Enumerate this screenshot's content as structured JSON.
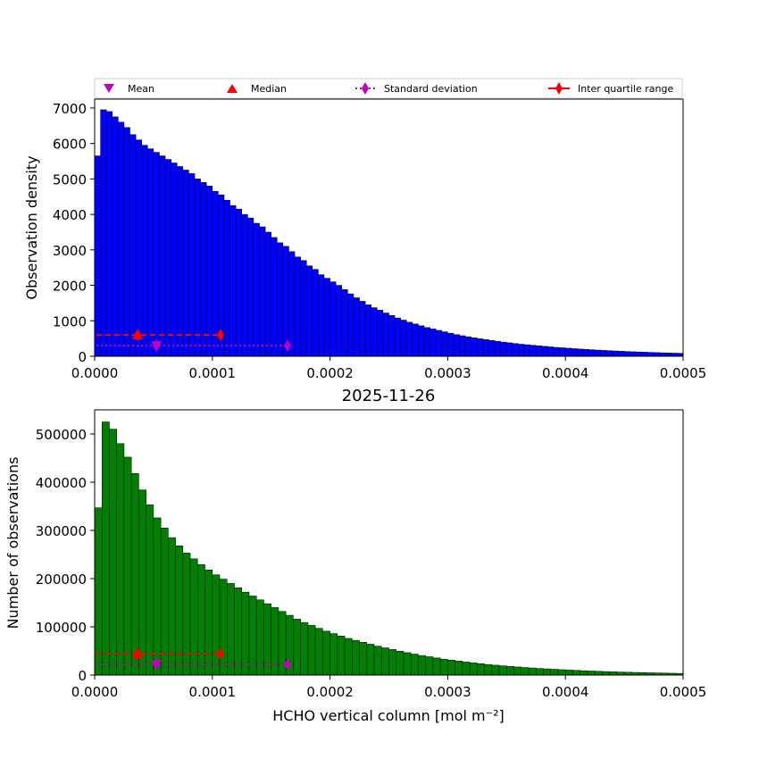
{
  "chart_data": [
    {
      "type": "bar",
      "id": "density",
      "title": "",
      "xlabel": "",
      "ylabel": "Observation density",
      "xlim": [
        0,
        0.0005
      ],
      "ylim": [
        0,
        7250
      ],
      "xticks": [
        "0.0000",
        "0.0001",
        "0.0002",
        "0.0003",
        "0.0004",
        "0.0005"
      ],
      "xtick_values": [
        0,
        0.0001,
        0.0002,
        0.0003,
        0.0004,
        0.0005
      ],
      "yticks": [
        "0",
        "1000",
        "2000",
        "3000",
        "4000",
        "5000",
        "6000",
        "7000"
      ],
      "ytick_values": [
        0,
        1000,
        2000,
        3000,
        4000,
        5000,
        6000,
        7000
      ],
      "bar_color": "#0000ff",
      "bin_start": 0,
      "bin_width": 5e-06,
      "values": [
        5650,
        6950,
        6900,
        6750,
        6600,
        6450,
        6250,
        6100,
        5950,
        5850,
        5750,
        5650,
        5550,
        5450,
        5350,
        5250,
        5150,
        5000,
        4900,
        4800,
        4650,
        4550,
        4400,
        4250,
        4150,
        4000,
        3900,
        3750,
        3650,
        3500,
        3350,
        3200,
        3100,
        2950,
        2800,
        2700,
        2550,
        2450,
        2300,
        2200,
        2100,
        2000,
        1880,
        1760,
        1650,
        1550,
        1450,
        1370,
        1300,
        1220,
        1150,
        1080,
        1020,
        960,
        910,
        860,
        810,
        770,
        730,
        690,
        650,
        610,
        580,
        550,
        520,
        495,
        470,
        445,
        420,
        400,
        380,
        360,
        340,
        325,
        310,
        295,
        280,
        265,
        250,
        240,
        228,
        216,
        205,
        195,
        185,
        175,
        166,
        158,
        150,
        142,
        135,
        128,
        122,
        116,
        110,
        104,
        99,
        94,
        89,
        84
      ],
      "stats": {
        "mean": 5.25e-05,
        "median": 3.65e-05,
        "std_range": [
          5.25e-05,
          0.000164
        ],
        "iqr_range": [
          3.65e-05,
          0.000107
        ],
        "marker_level_stats": 300,
        "marker_level_iqr": 600
      }
    },
    {
      "type": "bar",
      "id": "counts",
      "title": "2025-11-26",
      "xlabel": "HCHO vertical column [mol m⁻²]",
      "ylabel": "Number of observations",
      "xlim": [
        0,
        0.0005
      ],
      "ylim": [
        0,
        550000
      ],
      "xticks": [
        "0.0000",
        "0.0001",
        "0.0002",
        "0.0003",
        "0.0004",
        "0.0005"
      ],
      "xtick_values": [
        0,
        0.0001,
        0.0002,
        0.0003,
        0.0004,
        0.0005
      ],
      "yticks": [
        "0",
        "100000",
        "200000",
        "300000",
        "400000",
        "500000"
      ],
      "ytick_values": [
        0,
        100000,
        200000,
        300000,
        400000,
        500000
      ],
      "bar_color": "#008000",
      "bin_start": 0,
      "bin_width": 6.25e-06,
      "values": [
        347000,
        525000,
        510000,
        480000,
        452000,
        418000,
        384000,
        353000,
        326000,
        305000,
        285000,
        268000,
        253000,
        241000,
        229000,
        218000,
        208000,
        199000,
        190000,
        181000,
        172000,
        164000,
        156000,
        148000,
        140000,
        132000,
        124000,
        116000,
        109000,
        103000,
        97000,
        91000,
        86000,
        81000,
        76000,
        72000,
        68000,
        64000,
        60000,
        56500,
        53000,
        49500,
        46500,
        43500,
        40500,
        38000,
        35500,
        33000,
        31000,
        29000,
        27000,
        25200,
        23500,
        22000,
        20500,
        19200,
        18000,
        16800,
        15700,
        14700,
        13700,
        12800,
        12000,
        11200,
        10400,
        9700,
        9000,
        8400,
        7800,
        7300,
        6800,
        6300,
        5900,
        5500,
        5100,
        4700,
        4400,
        4100,
        3800,
        3500
      ],
      "stats": {
        "mean": 5.25e-05,
        "median": 3.65e-05,
        "std_range": [
          5.25e-05,
          0.000164
        ],
        "iqr_range": [
          3.65e-05,
          0.000107
        ],
        "marker_level_stats": 22000,
        "marker_level_iqr": 44000
      }
    }
  ],
  "legend": {
    "mean_label": "Mean",
    "median_label": "Median",
    "std_label": "Standard deviation",
    "iqr_label": "Inter quartile range"
  },
  "colors": {
    "mean": "#bf00bf",
    "median": "#ff0000",
    "std": "#bf00bf",
    "iqr": "#ff0000"
  }
}
